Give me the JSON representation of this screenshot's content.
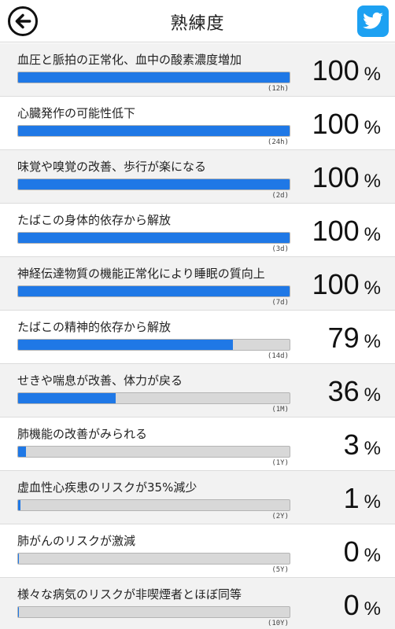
{
  "header": {
    "title": "熟練度",
    "back_icon": "arrow-left-icon",
    "share_icon": "twitter-icon",
    "share_color": "#1da1f2"
  },
  "colors": {
    "bar_fill": "#1f78e6",
    "bar_track": "#d8d8d8"
  },
  "items": [
    {
      "label": "血圧と脈拍の正常化、血中の酸素濃度増加",
      "period": "(12h)",
      "percent": "100",
      "sign": "%",
      "progress": 1.0
    },
    {
      "label": "心臓発作の可能性低下",
      "period": "(24h)",
      "percent": "100",
      "sign": "%",
      "progress": 1.0
    },
    {
      "label": "味覚や嗅覚の改善、歩行が楽になる",
      "period": "(2d)",
      "percent": "100",
      "sign": "%",
      "progress": 1.0
    },
    {
      "label": "たばこの身体的依存から解放",
      "period": "(3d)",
      "percent": "100",
      "sign": "%",
      "progress": 1.0
    },
    {
      "label": "神経伝達物質の機能正常化により睡眠の質向上",
      "period": "(7d)",
      "percent": "100",
      "sign": "%",
      "progress": 1.0
    },
    {
      "label": "たばこの精神的依存から解放",
      "period": "(14d)",
      "percent": "79",
      "sign": "%",
      "progress": 0.79
    },
    {
      "label": "せきや喘息が改善、体力が戻る",
      "period": "(1M)",
      "percent": "36",
      "sign": "%",
      "progress": 0.36
    },
    {
      "label": "肺機能の改善がみられる",
      "period": "(1Y)",
      "percent": "3",
      "sign": "%",
      "progress": 0.03
    },
    {
      "label": "虚血性心疾患のリスクが35%減少",
      "period": "(2Y)",
      "percent": "1",
      "sign": "%",
      "progress": 0.01
    },
    {
      "label": "肺がんのリスクが激減",
      "period": "(5Y)",
      "percent": "0",
      "sign": "%",
      "progress": 0.004
    },
    {
      "label": "様々な病気のリスクが非喫煙者とほぼ同等",
      "period": "(10Y)",
      "percent": "0",
      "sign": "%",
      "progress": 0.002
    }
  ]
}
